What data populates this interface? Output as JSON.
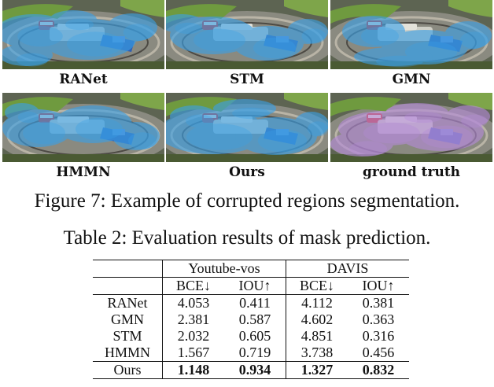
{
  "figure": {
    "panels": [
      {
        "label": "RANet",
        "overlay": "#3aa0e6"
      },
      {
        "label": "STM",
        "overlay": "#3aa0e6"
      },
      {
        "label": "GMN",
        "overlay": "#3aa0e6"
      },
      {
        "label": "HMMN",
        "overlay": "#3aa0e6"
      },
      {
        "label": "Ours",
        "overlay": "#3aa0e6"
      },
      {
        "label": "ground truth",
        "overlay": "#b48ad8"
      }
    ],
    "caption": "Figure 7: Example of corrupted regions segmentation."
  },
  "table": {
    "caption": "Table 2: Evaluation results of mask prediction.",
    "groups": [
      "Youtube-vos",
      "DAVIS"
    ],
    "metrics": [
      "BCE↓",
      "IOU↑",
      "BCE↓",
      "IOU↑"
    ],
    "rows": [
      {
        "method": "RANet",
        "values": [
          "4.053",
          "0.411",
          "4.112",
          "0.381"
        ]
      },
      {
        "method": "GMN",
        "values": [
          "2.381",
          "0.587",
          "4.602",
          "0.363"
        ]
      },
      {
        "method": "STM",
        "values": [
          "2.032",
          "0.605",
          "4.851",
          "0.316"
        ]
      },
      {
        "method": "HMMN",
        "values": [
          "1.567",
          "0.719",
          "3.738",
          "0.456"
        ]
      },
      {
        "method": "Ours",
        "values": [
          "1.148",
          "0.934",
          "1.327",
          "0.832"
        ]
      }
    ]
  }
}
